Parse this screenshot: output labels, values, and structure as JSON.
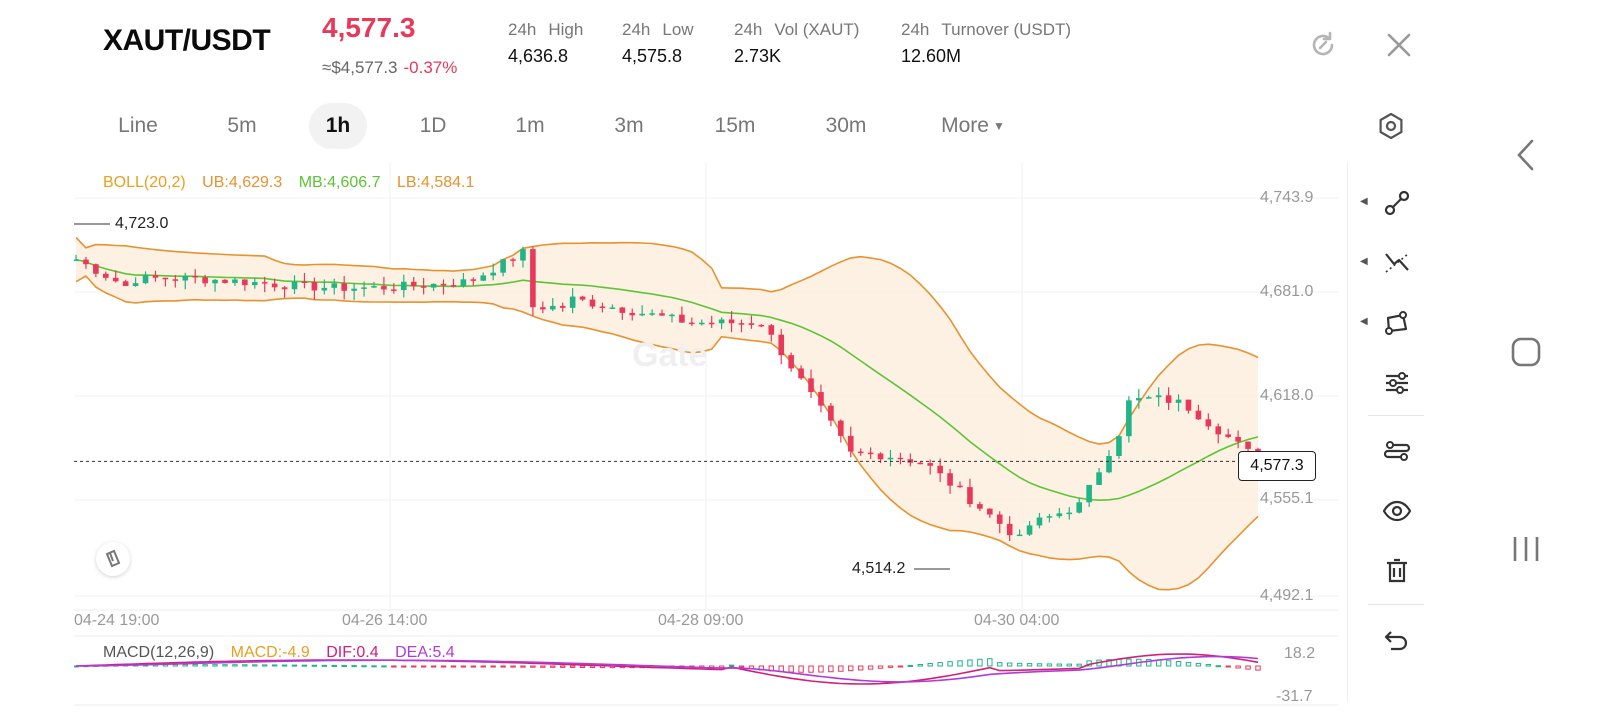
{
  "header": {
    "pair": "XAUT/USDT",
    "price": "4,577.3",
    "usd_price": "≈$4,577.3",
    "change": "-0.37%",
    "stats": [
      {
        "period": "24h",
        "label": "High",
        "value": "4,636.8"
      },
      {
        "period": "24h",
        "label": "Low",
        "value": "4,575.8"
      },
      {
        "period": "24h",
        "label": "Vol (XAUT)",
        "value": "2.73K"
      },
      {
        "period": "24h",
        "label": "Turnover (USDT)",
        "value": "12.60M"
      }
    ]
  },
  "intervals": {
    "items": [
      "Line",
      "5m",
      "1h",
      "1D",
      "1m",
      "3m",
      "15m",
      "30m",
      "More"
    ],
    "active": "1h"
  },
  "indicators": {
    "boll": {
      "name": "BOLL(20,2)",
      "ub": "UB:4,629.3",
      "mb": "MB:4,606.7",
      "lb": "LB:4,584.1"
    },
    "macd": {
      "name": "MACD(12,26,9)",
      "macd": "MACD:-4.9",
      "dif": "DIF:0.4",
      "dea": "DEA:5.4"
    }
  },
  "price_axis": [
    "4,743.9",
    "4,681.0",
    "4,618.0",
    "4,555.1",
    "4,492.1"
  ],
  "time_axis": [
    "04-24 19:00",
    "04-26 14:00",
    "04-28 09:00",
    "04-30 04:00"
  ],
  "markers": {
    "high": "4,723.0",
    "low": "4,514.2",
    "current": "4,577.3"
  },
  "macd_axis": [
    "18.2",
    "-31.7"
  ],
  "watermark": "Gate",
  "colors": {
    "up": "#20b486",
    "down": "#e8395a",
    "boll_band": "#e8922f",
    "boll_mid": "#5ec437",
    "dif": "#d0207a",
    "dea": "#b03cd8"
  },
  "tools": [
    "line-tool-icon",
    "trend-tool-icon",
    "shape-tool-icon",
    "settings-sliders-icon",
    "indicator-icon",
    "eye-icon",
    "delete-icon",
    "undo-icon"
  ],
  "chart_data": {
    "type": "candlestick",
    "x_range": [
      "04-24 19:00",
      "04-30 04:00"
    ],
    "ylim": [
      4492.1,
      4743.9
    ],
    "series": [
      {
        "name": "BOLL(20,2)",
        "values": {
          "UB": 4629.3,
          "MB": 4606.7,
          "LB": 4584.1
        }
      },
      {
        "name": "MACD(12,26,9)",
        "values": {
          "MACD": -4.9,
          "DIF": 0.4,
          "DEA": 5.4
        }
      }
    ],
    "highest": 4723.0,
    "lowest": 4514.2,
    "last": 4577.3
  }
}
